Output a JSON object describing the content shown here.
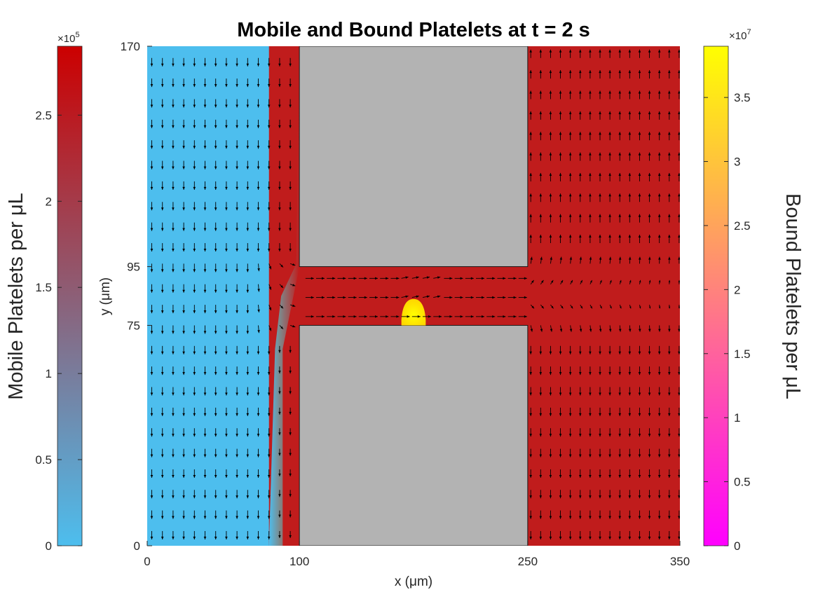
{
  "chart_data": {
    "type": "heatmap",
    "title": "Mobile and Bound Platelets at t = 2 s",
    "xlabel": "x (μm)",
    "ylabel": "y (μm)",
    "xlim": [
      0,
      350
    ],
    "ylim": [
      0,
      170
    ],
    "xticks": [
      0,
      100,
      250,
      350
    ],
    "yticks": [
      0,
      75,
      95,
      170
    ],
    "domain": {
      "left_channel": {
        "x": [
          0,
          100
        ],
        "y": [
          0,
          170
        ]
      },
      "connecting_channel": {
        "x": [
          100,
          250
        ],
        "y": [
          75,
          95
        ]
      },
      "right_channel": {
        "x": [
          250,
          350
        ],
        "y": [
          0,
          170
        ]
      },
      "walls": [
        {
          "x": [
            100,
            250
          ],
          "y": [
            95,
            170
          ]
        },
        {
          "x": [
            100,
            250
          ],
          "y": [
            0,
            75
          ]
        }
      ]
    },
    "mobile_platelets": {
      "label": "Mobile Platelets per μL",
      "exponent": "×10",
      "exponent_power": "5",
      "range": [
        0,
        2.9
      ],
      "ticks": [
        0,
        0.5,
        1,
        1.5,
        2,
        2.5
      ],
      "tick_labels": [
        "0",
        "0.5",
        "1",
        "1.5",
        "2",
        "2.5"
      ],
      "colormap": [
        "#4dbeee",
        "#c00000"
      ],
      "left_channel_value": 0,
      "front_x": [
        80,
        84
      ],
      "connecting_and_right_value": 2.9
    },
    "bound_platelets": {
      "label": "Bound Platelets per μL",
      "exponent": "×10",
      "exponent_power": "7",
      "range": [
        0,
        3.9
      ],
      "ticks": [
        0,
        0.5,
        1,
        1.5,
        2,
        2.5,
        3,
        3.5
      ],
      "tick_labels": [
        "0",
        "0.5",
        "1",
        "1.5",
        "2",
        "2.5",
        "3",
        "3.5"
      ],
      "colormap": [
        "#ff00ff",
        "#ffff00"
      ],
      "clot": {
        "x": [
          167,
          183
        ],
        "y": [
          75,
          84
        ],
        "value": 3.9
      }
    },
    "velocity_field": {
      "type": "quiver",
      "color": "#000000"
    },
    "colors": {
      "wall": "#b3b3b3",
      "mobile_high": "#c01c1c",
      "mobile_low": "#4dbeee"
    }
  }
}
